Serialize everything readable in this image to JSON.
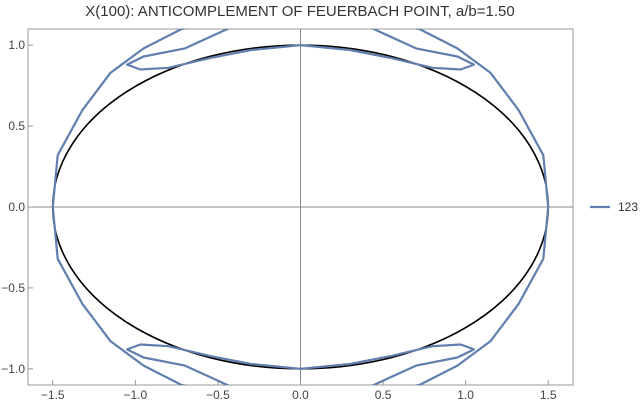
{
  "chart_data": {
    "type": "line",
    "title": "X(100): ANTICOMPLEMENT OF FEUERBACH POINT, a/b=1.50",
    "xlabel": "",
    "ylabel": "",
    "xlim": [
      -1.65,
      1.65
    ],
    "ylim": [
      -1.1,
      1.1
    ],
    "xticks": [
      -1.5,
      -1.0,
      -0.5,
      0.0,
      0.5,
      1.0,
      1.5
    ],
    "xtick_labels": [
      "−1.5",
      "−1.0",
      "−0.5",
      "0.0",
      "0.5",
      "1.0",
      "1.5"
    ],
    "yticks": [
      -1.0,
      -0.5,
      0.0,
      0.5,
      1.0
    ],
    "ytick_labels": [
      "−1.0",
      "−0.5",
      "0.0",
      "0.5",
      "1.0"
    ],
    "grid": false,
    "legend_position": "right",
    "ellipse": {
      "a": 1.5,
      "b": 1.0,
      "color": "#000000"
    },
    "series": [
      {
        "name": "123",
        "color": "#5f7fae",
        "x": [
          1.5,
          1.47,
          1.32,
          1.15,
          0.95,
          0.72,
          0.55,
          0.4,
          0.7,
          0.95,
          1.05,
          0.97,
          0.8,
          0.55,
          0.3,
          0.0,
          -0.3,
          -0.55,
          -0.8,
          -0.97,
          -1.05,
          -0.95,
          -0.7,
          -0.4,
          -0.55,
          -0.72,
          -0.95,
          -1.15,
          -1.32,
          -1.47,
          -1.5,
          -1.47,
          -1.32,
          -1.15,
          -0.95,
          -0.72,
          -0.55,
          -0.4,
          -0.7,
          -0.95,
          -1.05,
          -0.97,
          -0.8,
          -0.55,
          -0.3,
          0.0,
          0.3,
          0.55,
          0.8,
          0.97,
          1.05,
          0.95,
          0.7,
          0.4,
          0.55,
          0.72,
          0.95,
          1.15,
          1.32,
          1.47,
          1.5
        ],
        "y": [
          0.0,
          0.32,
          0.6,
          0.83,
          0.98,
          1.1,
          1.13,
          1.12,
          0.98,
          0.93,
          0.88,
          0.85,
          0.86,
          0.92,
          0.97,
          1.0,
          0.97,
          0.92,
          0.86,
          0.85,
          0.88,
          0.93,
          0.98,
          1.12,
          1.13,
          1.1,
          0.98,
          0.83,
          0.6,
          0.32,
          0.0,
          -0.32,
          -0.6,
          -0.83,
          -0.98,
          -1.1,
          -1.13,
          -1.12,
          -0.98,
          -0.93,
          -0.88,
          -0.85,
          -0.86,
          -0.92,
          -0.97,
          -1.0,
          -0.97,
          -0.92,
          -0.86,
          -0.85,
          -0.88,
          -0.93,
          -0.98,
          -1.12,
          -1.13,
          -1.1,
          -0.98,
          -0.83,
          -0.6,
          -0.32,
          0.0
        ]
      }
    ]
  }
}
